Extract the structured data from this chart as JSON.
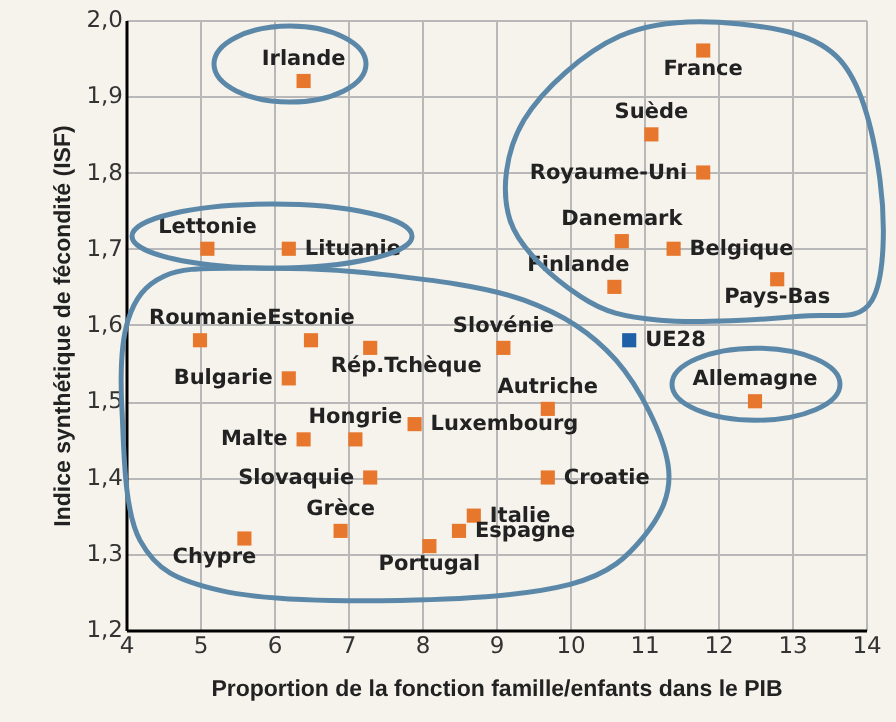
{
  "chart_data": {
    "type": "scatter",
    "xlabel": "Proportion de la fonction famille/enfants dans le PIB",
    "ylabel": "Indice synthétique de fécondité (ISF)",
    "xlim": [
      4,
      14
    ],
    "xticks": [
      4,
      5,
      6,
      7,
      8,
      9,
      10,
      11,
      12,
      13,
      14
    ],
    "ylim": [
      1.2,
      2.0
    ],
    "yticks": [
      {
        "value": 1.2,
        "label": "1,2"
      },
      {
        "value": 1.3,
        "label": "1,3"
      },
      {
        "value": 1.4,
        "label": "1,4"
      },
      {
        "value": 1.5,
        "label": "1,5"
      },
      {
        "value": 1.6,
        "label": "1,6"
      },
      {
        "value": 1.7,
        "label": "1,7"
      },
      {
        "value": 1.8,
        "label": "1,8"
      },
      {
        "value": 1.9,
        "label": "1,9"
      },
      {
        "value": 2.0,
        "label": "2,0"
      }
    ],
    "grid": true,
    "legend": false,
    "marker": "square",
    "series": [
      {
        "name": "Irlande",
        "color": "#e8772e",
        "x": [
          6.4
        ],
        "values": [
          1.92
        ]
      },
      {
        "name": "France",
        "color": "#e8772e",
        "x": [
          11.8
        ],
        "values": [
          1.96
        ]
      },
      {
        "name": "Suède",
        "color": "#e8772e",
        "x": [
          11.1
        ],
        "values": [
          1.85
        ]
      },
      {
        "name": "Royaume-Uni",
        "color": "#e8772e",
        "x": [
          11.8
        ],
        "values": [
          1.8
        ]
      },
      {
        "name": "Danemark",
        "color": "#e8772e",
        "x": [
          10.7
        ],
        "values": [
          1.71
        ]
      },
      {
        "name": "Belgique",
        "color": "#e8772e",
        "x": [
          11.4
        ],
        "values": [
          1.7
        ]
      },
      {
        "name": "Finlande",
        "color": "#e8772e",
        "x": [
          10.6
        ],
        "values": [
          1.65
        ]
      },
      {
        "name": "Pays-Bas",
        "color": "#e8772e",
        "x": [
          12.8
        ],
        "values": [
          1.66
        ]
      },
      {
        "name": "UE28",
        "color": "#1f5fa8",
        "x": [
          10.8
        ],
        "values": [
          1.58
        ]
      },
      {
        "name": "Lettonie",
        "color": "#e8772e",
        "x": [
          5.1
        ],
        "values": [
          1.7
        ]
      },
      {
        "name": "Lituanie",
        "color": "#e8772e",
        "x": [
          6.2
        ],
        "values": [
          1.7
        ]
      },
      {
        "name": "Roumanie",
        "color": "#e8772e",
        "x": [
          5.0
        ],
        "values": [
          1.58
        ]
      },
      {
        "name": "Estonie",
        "color": "#e8772e",
        "x": [
          6.5
        ],
        "values": [
          1.58
        ]
      },
      {
        "name": "Rép.Tchèque",
        "color": "#e8772e",
        "x": [
          7.3
        ],
        "values": [
          1.57
        ]
      },
      {
        "name": "Slovénie",
        "color": "#e8772e",
        "x": [
          9.1
        ],
        "values": [
          1.57
        ]
      },
      {
        "name": "Bulgarie",
        "color": "#e8772e",
        "x": [
          6.2
        ],
        "values": [
          1.53
        ]
      },
      {
        "name": "Luxembourg",
        "color": "#e8772e",
        "x": [
          7.9
        ],
        "values": [
          1.47
        ]
      },
      {
        "name": "Malte",
        "color": "#e8772e",
        "x": [
          6.4
        ],
        "values": [
          1.45
        ]
      },
      {
        "name": "Hongrie",
        "color": "#e8772e",
        "x": [
          7.1
        ],
        "values": [
          1.45
        ]
      },
      {
        "name": "Slovaquie",
        "color": "#e8772e",
        "x": [
          7.3
        ],
        "values": [
          1.4
        ]
      },
      {
        "name": "Grèce",
        "color": "#e8772e",
        "x": [
          6.9
        ],
        "values": [
          1.33
        ]
      },
      {
        "name": "Chypre",
        "color": "#e8772e",
        "x": [
          5.6
        ],
        "values": [
          1.32
        ]
      },
      {
        "name": "Italie",
        "color": "#e8772e",
        "x": [
          8.7
        ],
        "values": [
          1.35
        ]
      },
      {
        "name": "Espagne",
        "color": "#e8772e",
        "x": [
          8.5
        ],
        "values": [
          1.33
        ]
      },
      {
        "name": "Portugal",
        "color": "#e8772e",
        "x": [
          8.1
        ],
        "values": [
          1.31
        ]
      },
      {
        "name": "Autriche",
        "color": "#e8772e",
        "x": [
          9.7
        ],
        "values": [
          1.49
        ]
      },
      {
        "name": "Croatie",
        "color": "#e8772e",
        "x": [
          9.7
        ],
        "values": [
          1.4
        ]
      },
      {
        "name": "Allemagne",
        "color": "#e8772e",
        "x": [
          12.5
        ],
        "values": [
          1.5
        ]
      }
    ]
  }
}
